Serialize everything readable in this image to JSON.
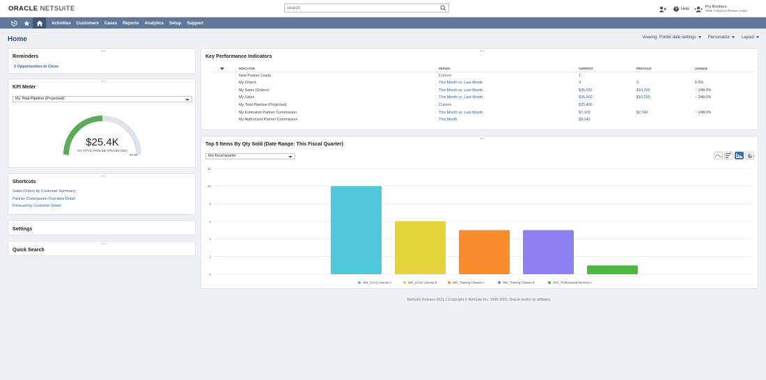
{
  "header": {
    "logo_oracle": "ORACLE",
    "logo_netsuite": "NETSUITE",
    "search_placeholder": "Search",
    "help_label": "Help",
    "user_name": "Pry Brothers",
    "user_role": "PRM - Advanced Partner Center",
    "icons": [
      "search-icon",
      "add-person-icon",
      "help-icon",
      "user-icon"
    ]
  },
  "nav": {
    "icons": [
      "recent-icon",
      "star-icon",
      "home-icon"
    ],
    "items": [
      "Activities",
      "Customers",
      "Cases",
      "Reports",
      "Analytics",
      "Setup",
      "Support"
    ]
  },
  "page": {
    "title": "Home",
    "viewing": "Viewing: Portlet date settings",
    "personalize": "Personalize",
    "layout": "Layout"
  },
  "reminders": {
    "title": "Reminders",
    "count": "2",
    "link": "Opportunities to Close"
  },
  "kpi_meter": {
    "title": "KPI Meter",
    "select": "My Total Pipeline (Projected)",
    "value": "$25.4K",
    "label": "MY TOTAL PIPELINE (PROJECTED)",
    "min": "0",
    "max": "50.8K",
    "fraction": 0.5,
    "fill_color": "#5aab5a"
  },
  "shortcuts": {
    "title": "Shortcuts",
    "links": [
      "Sales Orders by Customer Summary",
      "Partner Commission Overview Detail",
      "Forecast by Customer Detail"
    ]
  },
  "settings": {
    "title": "Settings"
  },
  "quick_search": {
    "title": "Quick Search"
  },
  "kpi": {
    "title": "Key Performance Indicators",
    "headers": [
      "INDICATOR",
      "PERIOD",
      "CURRENT",
      "PREVIOUS",
      "CHANGE"
    ],
    "rows": [
      {
        "indicator": "New Partner Leads",
        "period": "Current",
        "current": "1",
        "previous": "",
        "change": "",
        "arrow": false
      },
      {
        "indicator": "My Orders",
        "period": "This Month vs. Last Month",
        "current": "3",
        "previous": "3",
        "change": "0.0%",
        "arrow": false
      },
      {
        "indicator": "My Sales (Orders)",
        "period": "This Month vs. Last Month",
        "current": "$35,500",
        "previous": "$10,200",
        "change": "248.0%",
        "arrow": true
      },
      {
        "indicator": "My Sales",
        "period": "This Month vs. Last Month",
        "current": "$35,500",
        "previous": "$10,200",
        "change": "248.0%",
        "arrow": true
      },
      {
        "indicator": "My Total Pipeline (Projected)",
        "period": "Current",
        "current": "$25,400",
        "previous": "",
        "change": "",
        "arrow": false
      },
      {
        "indicator": "My Estimated Partner Commission",
        "period": "This Month vs. Last Month",
        "current": "$7,100",
        "previous": "$2,040",
        "change": "248.0%",
        "arrow": true
      },
      {
        "indicator": "My Authorized Partner Commission",
        "period": "This Month",
        "current": "$9,140",
        "previous": "",
        "change": "",
        "arrow": false
      }
    ]
  },
  "top_items": {
    "title": "Top 5 Items By Qty Sold (Date Range: This Fiscal Quarter)",
    "select": "this fiscal quarter"
  },
  "chart_data": {
    "type": "bar",
    "title": "Top 5 Items By Qty Sold (Date Range: This Fiscal Quarter)",
    "categories": [
      "NIN_SAAS License A",
      "NIN_SAAS License B",
      "NIN_Training Classes A",
      "NIN_Training Classes B",
      "SVC_Professional Services A"
    ],
    "values": [
      10,
      6,
      5,
      5,
      1
    ],
    "colors": [
      "#4fc8dc",
      "#e5d43c",
      "#fb8c2c",
      "#8b7ff1",
      "#4bb83e"
    ],
    "yticks": [
      0,
      2,
      4,
      6,
      8,
      10,
      12
    ],
    "ylim": [
      0,
      12
    ],
    "grid": true,
    "legend": "bottom"
  },
  "footer": "NetSuite Release 2021.1 Copyright © NetSuite Inc. 1999-2021. Oracle and/or its affiliates."
}
